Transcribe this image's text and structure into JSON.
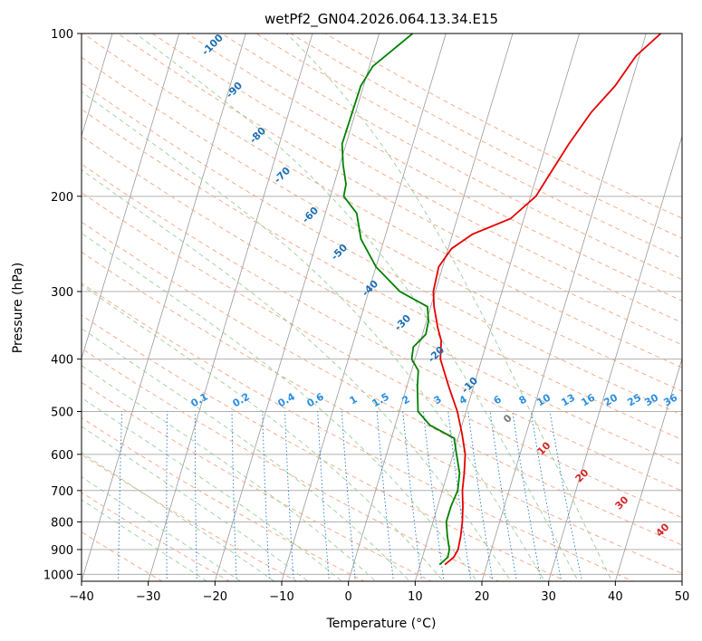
{
  "chart_data": {
    "type": "skew-t",
    "title": "wetPf2_GN04.2026.064.13.34.E15",
    "xlabel": "Temperature (°C)",
    "ylabel": "Pressure (hPa)",
    "xlim": [
      -40,
      50
    ],
    "ylim": [
      1030,
      100
    ],
    "x_ticks": [
      "−40",
      "−30",
      "−20",
      "−10",
      "0",
      "10",
      "20",
      "30",
      "40",
      "50"
    ],
    "y_ticks": [
      "100",
      "200",
      "300",
      "400",
      "500",
      "600",
      "700",
      "800",
      "900",
      "1000"
    ],
    "skew_degC_per_decade": 24.3,
    "series": [
      {
        "name": "temperature",
        "color": "#e60000",
        "points": [
          [
            960,
            13.7
          ],
          [
            930,
            14.7
          ],
          [
            900,
            15.0
          ],
          [
            850,
            14.8
          ],
          [
            800,
            14.4
          ],
          [
            750,
            13.8
          ],
          [
            700,
            13.0
          ],
          [
            650,
            12.5
          ],
          [
            600,
            11.8
          ],
          [
            550,
            10.4
          ],
          [
            500,
            8.7
          ],
          [
            450,
            6.3
          ],
          [
            400,
            3.8
          ],
          [
            370,
            3.1
          ],
          [
            350,
            2.0
          ],
          [
            320,
            0.5
          ],
          [
            300,
            -0.3
          ],
          [
            270,
            -0.6
          ],
          [
            250,
            0.5
          ],
          [
            235,
            3.0
          ],
          [
            220,
            8.0
          ],
          [
            200,
            10.8
          ],
          [
            180,
            12.0
          ],
          [
            160,
            13.4
          ],
          [
            140,
            15.3
          ],
          [
            125,
            17.7
          ],
          [
            110,
            19.5
          ],
          [
            100,
            22.2
          ]
        ]
      },
      {
        "name": "dewpoint",
        "color": "#008000",
        "points": [
          [
            960,
            12.9
          ],
          [
            930,
            13.8
          ],
          [
            900,
            13.7
          ],
          [
            850,
            12.8
          ],
          [
            800,
            12.0
          ],
          [
            750,
            12.0
          ],
          [
            700,
            12.3
          ],
          [
            650,
            11.8
          ],
          [
            600,
            10.5
          ],
          [
            560,
            9.4
          ],
          [
            530,
            5.2
          ],
          [
            500,
            2.8
          ],
          [
            470,
            2.1
          ],
          [
            450,
            1.6
          ],
          [
            420,
            1.0
          ],
          [
            400,
            -0.5
          ],
          [
            380,
            -0.8
          ],
          [
            360,
            0.5
          ],
          [
            340,
            0.3
          ],
          [
            320,
            -0.5
          ],
          [
            300,
            -5.3
          ],
          [
            270,
            -10.0
          ],
          [
            240,
            -13.5
          ],
          [
            215,
            -15.3
          ],
          [
            200,
            -18.0
          ],
          [
            190,
            -18.2
          ],
          [
            175,
            -19.5
          ],
          [
            160,
            -20.6
          ],
          [
            140,
            -20.5
          ],
          [
            125,
            -20.4
          ],
          [
            115,
            -19.5
          ],
          [
            100,
            -15.0
          ]
        ]
      }
    ],
    "dry_adiabat_labels": [
      "0",
      "10",
      "20",
      "30",
      "40"
    ],
    "moist_adiabat_labels": [
      "-100",
      "-90",
      "-80",
      "-70",
      "-60",
      "-50",
      "-40",
      "-30",
      "-20",
      "-10"
    ],
    "mixing_ratio_labels": [
      "0.1",
      "0.2",
      "0.4",
      "0.6",
      "1",
      "1.5",
      "2",
      "3",
      "4",
      "6",
      "8",
      "10",
      "13",
      "16",
      "20",
      "25",
      "30",
      "36"
    ]
  }
}
